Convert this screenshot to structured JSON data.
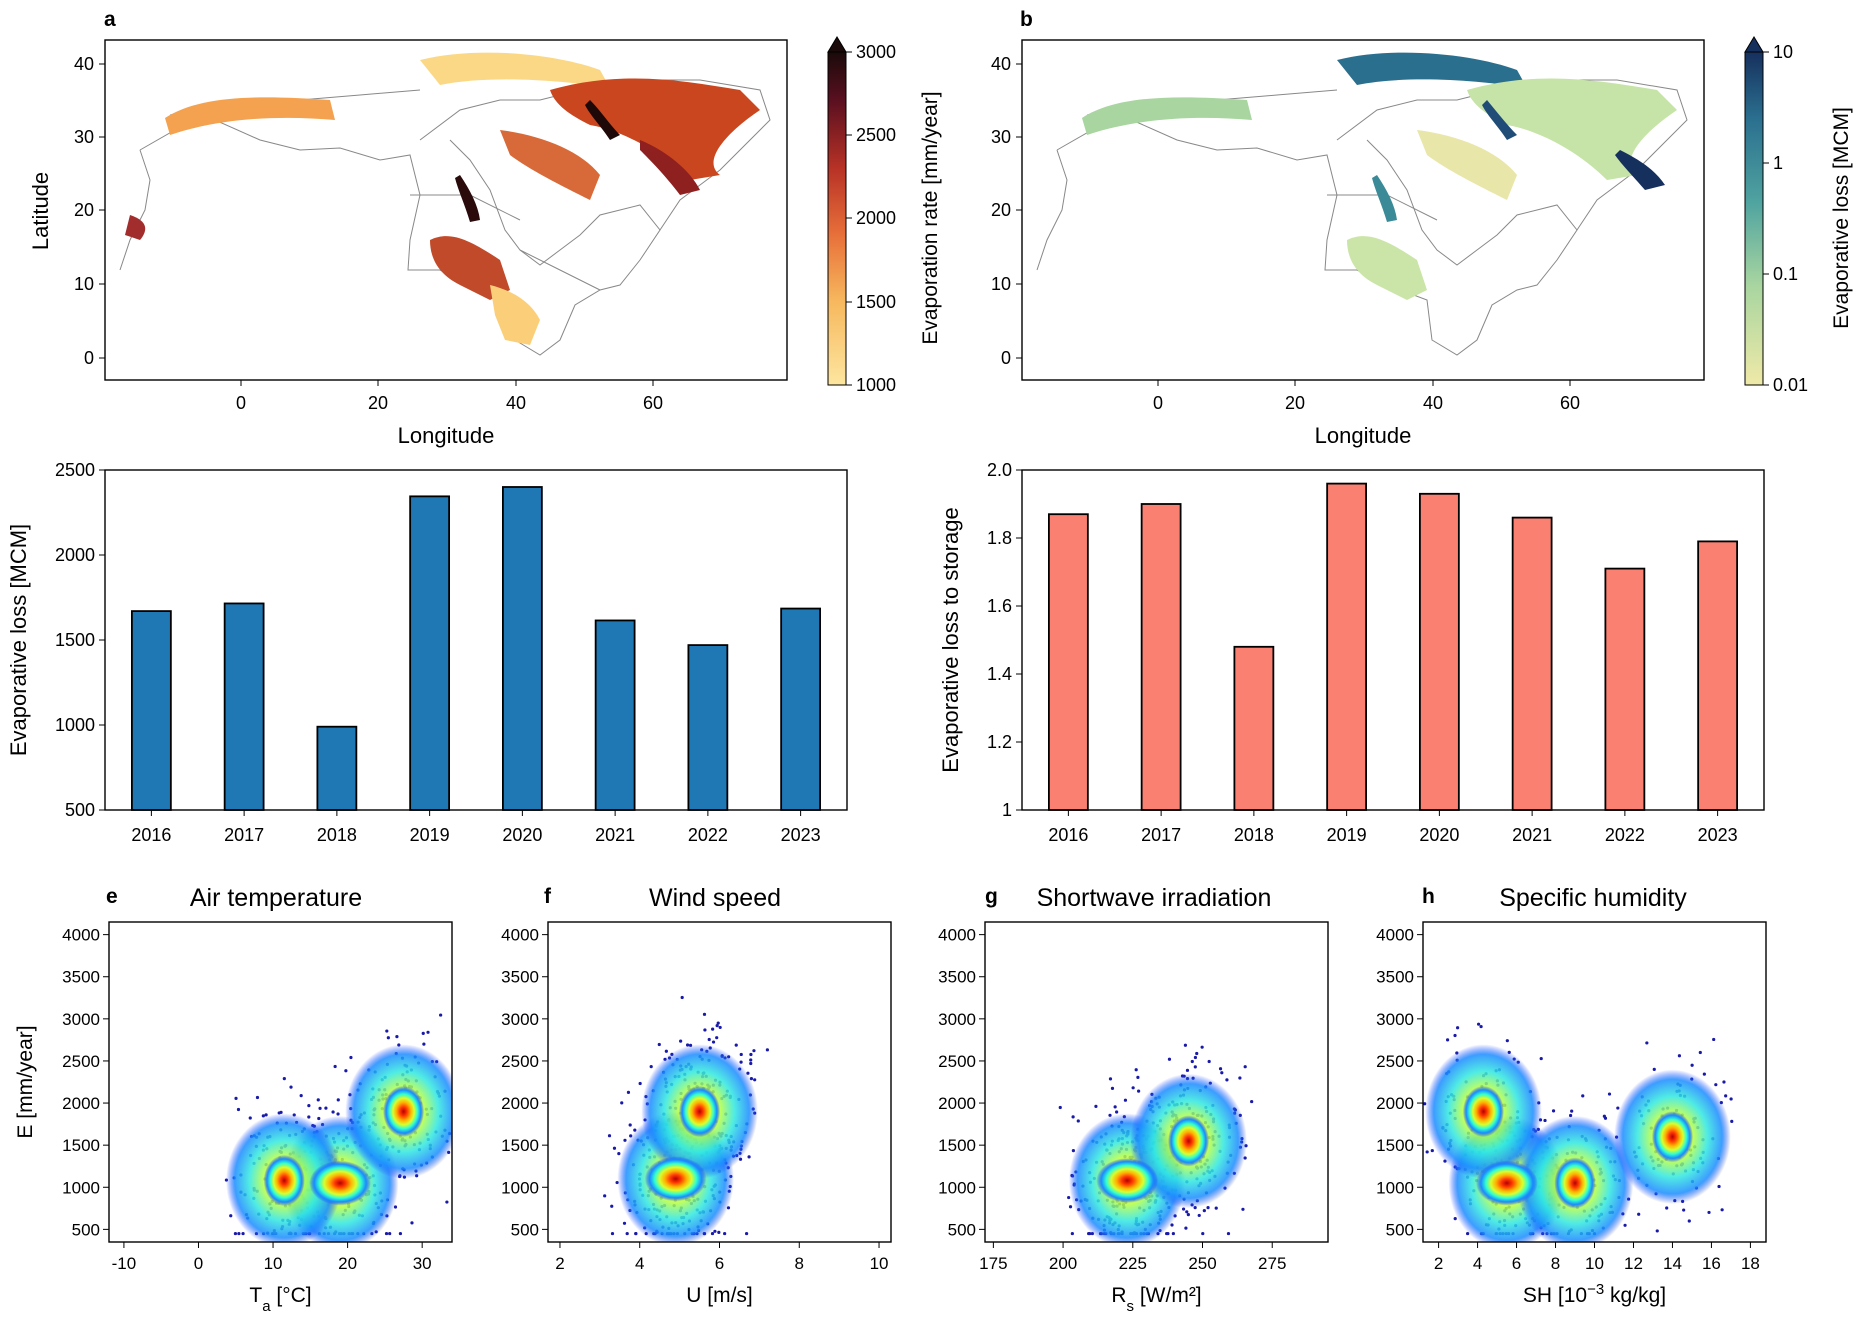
{
  "panels": {
    "a": {
      "letter": "a",
      "xlabel": "Longitude",
      "ylabel": "Latitude",
      "xticks": [
        "0",
        "20",
        "40",
        "60"
      ],
      "yticks": [
        "0",
        "10",
        "20",
        "30",
        "40"
      ],
      "colorbar_label": "Evaporation rate [mm/year]",
      "colorbar_ticks": [
        "1000",
        "1500",
        "2000",
        "2500",
        "3000"
      ]
    },
    "b": {
      "letter": "b",
      "xlabel": "Longitude",
      "xticks": [
        "0",
        "20",
        "40",
        "60"
      ],
      "yticks": [
        "0",
        "10",
        "20",
        "30",
        "40"
      ],
      "colorbar_label": "Evaporative loss [MCM]",
      "colorbar_ticks": [
        "0.01",
        "0.1",
        "1",
        "10"
      ]
    },
    "e": {
      "letter": "e",
      "title": "Air temperature"
    },
    "f": {
      "letter": "f",
      "title": "Wind speed"
    },
    "g": {
      "letter": "g",
      "title": "Shortwave irradiation"
    },
    "h": {
      "letter": "h",
      "title": "Specific humidity"
    }
  },
  "colors": {
    "bar_blue": "#1f77b4",
    "bar_salmon": "#fa8072",
    "map_warm": [
      "#fde6a0",
      "#f7b85e",
      "#e8703a",
      "#b83226",
      "#5c1020",
      "#1a0a0a"
    ],
    "map_cool": [
      "#efe9a8",
      "#a8d5a0",
      "#4fa3a0",
      "#2b6f8f",
      "#16305e"
    ]
  },
  "chart_data": [
    {
      "id": "c",
      "type": "bar",
      "categories": [
        "2016",
        "2017",
        "2018",
        "2019",
        "2020",
        "2021",
        "2022",
        "2023"
      ],
      "values": [
        1670,
        1715,
        990,
        2345,
        2400,
        1615,
        1470,
        1685
      ],
      "ylabel": "Evaporative loss [MCM]",
      "ylim": [
        500,
        2500
      ],
      "yticks": [
        "500",
        "1000",
        "1500",
        "2000",
        "2500"
      ]
    },
    {
      "id": "d",
      "type": "bar",
      "categories": [
        "2016",
        "2017",
        "2018",
        "2019",
        "2020",
        "2021",
        "2022",
        "2023"
      ],
      "values": [
        1.87,
        1.9,
        1.48,
        1.96,
        1.93,
        1.86,
        1.71,
        1.79
      ],
      "ylabel": "Evaporative loss to storage",
      "ylim": [
        1.0,
        2.0
      ],
      "yticks": [
        "1",
        "1.2",
        "1.4",
        "1.6",
        "1.8",
        "2.0"
      ]
    },
    {
      "id": "e",
      "type": "scatter",
      "title": "Air temperature",
      "ylabel": "E [mm/year]",
      "xlabel_main": "T",
      "xlabel_sub": "a",
      "xlabel_rest": " [°C]",
      "xlim": [
        -12,
        34
      ],
      "ylim": [
        350,
        4150
      ],
      "xticks": [
        -10,
        0,
        10,
        20,
        30
      ],
      "yticks": [
        500,
        1000,
        1500,
        2000,
        2500,
        3000,
        3500,
        4000
      ],
      "density_peaks": [
        {
          "x": 19,
          "y": 1050
        },
        {
          "x": 27.5,
          "y": 1900
        },
        {
          "x": 11.5,
          "y": 1080
        }
      ]
    },
    {
      "id": "f",
      "type": "scatter",
      "title": "Wind speed",
      "xlabel_main": "U [m/s]",
      "xlabel_sub": "",
      "xlabel_rest": "",
      "xlim": [
        1.7,
        10.3
      ],
      "ylim": [
        350,
        4150
      ],
      "xticks": [
        2,
        4,
        6,
        8,
        10
      ],
      "yticks": [
        500,
        1000,
        1500,
        2000,
        2500,
        3000,
        3500,
        4000
      ],
      "density_peaks": [
        {
          "x": 4.9,
          "y": 1100
        },
        {
          "x": 5.5,
          "y": 1900
        }
      ]
    },
    {
      "id": "g",
      "type": "scatter",
      "title": "Shortwave irradiation",
      "xlabel_main": "R",
      "xlabel_sub": "s",
      "xlabel_rest": " [W/m²]",
      "xlim": [
        172,
        295
      ],
      "ylim": [
        350,
        4150
      ],
      "xticks": [
        175,
        200,
        225,
        250,
        275
      ],
      "yticks": [
        500,
        1000,
        1500,
        2000,
        2500,
        3000,
        3500,
        4000
      ],
      "density_peaks": [
        {
          "x": 223,
          "y": 1080
        },
        {
          "x": 245,
          "y": 1550
        }
      ]
    },
    {
      "id": "h",
      "type": "scatter",
      "title": "Specific humidity",
      "xlabel_main": "SH [10",
      "xlabel_sup": "−3",
      "xlabel_rest": " kg/kg]",
      "xlim": [
        1.2,
        18.8
      ],
      "ylim": [
        350,
        4150
      ],
      "xticks": [
        2,
        4,
        6,
        8,
        10,
        12,
        14,
        16,
        18
      ],
      "yticks": [
        500,
        1000,
        1500,
        2000,
        2500,
        3000,
        3500,
        4000
      ],
      "density_peaks": [
        {
          "x": 5.5,
          "y": 1050
        },
        {
          "x": 4.3,
          "y": 1900
        },
        {
          "x": 9,
          "y": 1050
        },
        {
          "x": 14,
          "y": 1600
        }
      ]
    }
  ]
}
